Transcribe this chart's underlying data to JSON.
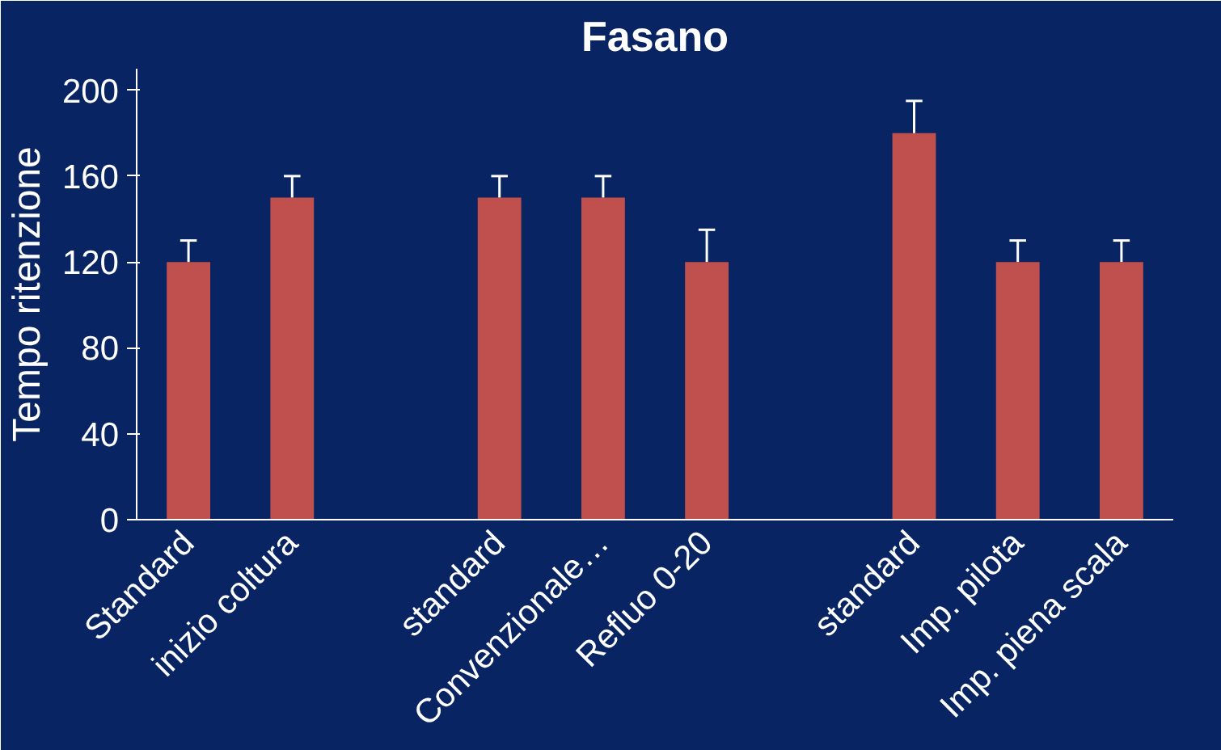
{
  "chart_data": {
    "type": "bar",
    "title": "Fasano",
    "ylabel": "Tempo ritenzione",
    "categories": [
      "Standard",
      "inizio coltura",
      null,
      "standard",
      "Convenzionale…",
      "Refluo 0-20",
      null,
      "standard",
      "Imp. pilota",
      "Imp. piena scala"
    ],
    "values": [
      120,
      150,
      null,
      150,
      150,
      120,
      null,
      180,
      120,
      120
    ],
    "errors": [
      [
        120,
        130
      ],
      [
        150,
        160
      ],
      null,
      [
        150,
        160
      ],
      [
        150,
        160
      ],
      [
        120,
        135
      ],
      null,
      [
        180,
        195
      ],
      [
        120,
        130
      ],
      [
        120,
        130
      ]
    ],
    "color": "#c0504d",
    "ylim": [
      0,
      210
    ],
    "yticks": [
      0,
      40,
      80,
      120,
      160,
      200
    ],
    "grid": false
  }
}
